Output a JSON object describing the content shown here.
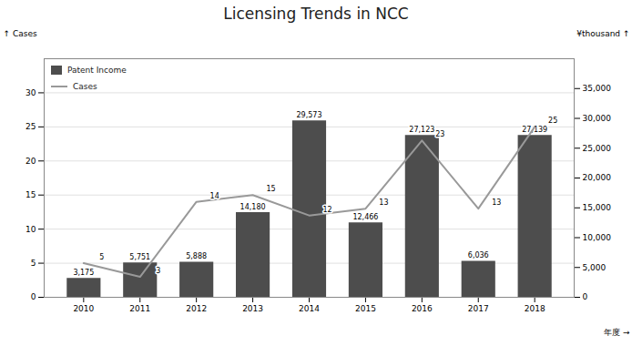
{
  "chart_data": {
    "type": "bar",
    "title": "Licensing Trends in NCC",
    "x": [
      2010,
      2011,
      2012,
      2013,
      2014,
      2015,
      2016,
      2017,
      2018
    ],
    "xlim": [
      2009.3,
      2018.7
    ],
    "xticks": [
      2010,
      2011,
      2012,
      2013,
      2014,
      2015,
      2016,
      2017,
      2018
    ],
    "xlabel": "年度",
    "ylabel": "Cases",
    "y2label": "¥thousand",
    "ylim": [
      0,
      35
    ],
    "yticks": [
      0,
      5,
      10,
      15,
      20,
      25,
      30
    ],
    "y2lim": [
      0,
      40000
    ],
    "y2ticks": [
      0,
      {
        "value": 5000,
        "label": "5,000"
      },
      {
        "value": 10000,
        "label": "10,000"
      },
      {
        "value": 15000,
        "label": "15,000"
      },
      {
        "value": 20000,
        "label": "20,000"
      },
      {
        "value": 25000,
        "label": "25,000"
      },
      {
        "value": 30000,
        "label": "30,000"
      },
      {
        "value": 35000,
        "label": "35,000"
      }
    ],
    "grid": true,
    "legend": "upper left",
    "data_labels": true,
    "series": [
      {
        "name": "Patent Income",
        "type": "bar",
        "axis": "y2",
        "color": "#4d4d4d",
        "values": [
          3175,
          5751,
          5888,
          14180,
          29573,
          12466,
          27123,
          6036,
          27139
        ],
        "value_labels": [
          "3,175",
          "5,751",
          "5,888",
          "14,180",
          "29,573",
          "12,466",
          "27,123",
          "6,036",
          "27,139"
        ]
      },
      {
        "name": "Cases",
        "type": "line",
        "color": "#999999",
        "values": [
          5,
          3,
          14,
          15,
          12,
          13,
          23,
          13,
          25
        ]
      }
    ]
  }
}
